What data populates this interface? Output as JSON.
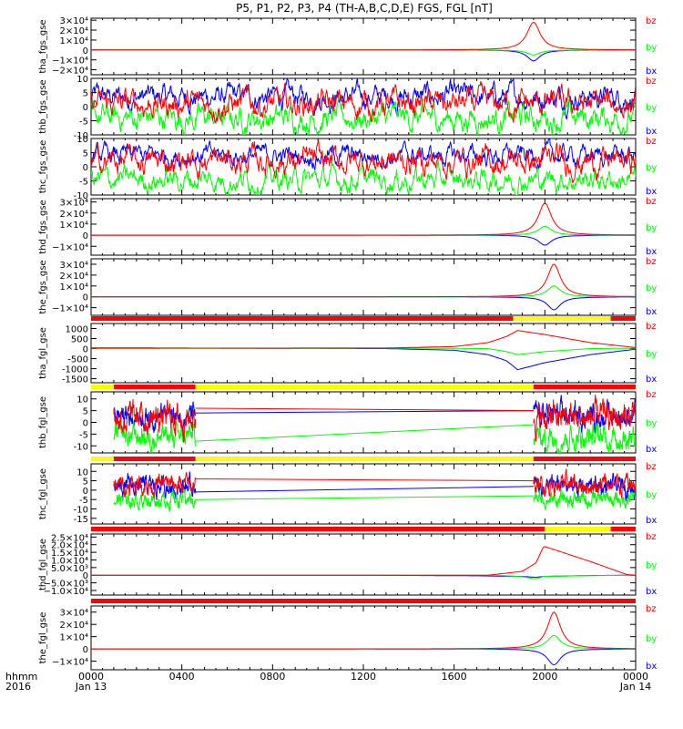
{
  "title": "P5, P1, P2, P3, P4 (TH-A,B,C,D,E) FGS, FGL [nT]",
  "x_axis": {
    "ticks": [
      "0000",
      "0400",
      "0800",
      "1200",
      "1600",
      "2000",
      "0000"
    ],
    "date_labels": [
      "Jan 13",
      "Jan 14"
    ],
    "corner_labels": [
      "hhmm",
      "2016"
    ],
    "range_hours": [
      0,
      24
    ]
  },
  "colors": {
    "bx": "#0000ff",
    "by": "#00ff00",
    "bz": "#ff0000",
    "bar_red": "#ff0000",
    "bar_yellow": "#ffff00"
  },
  "chart_data": [
    {
      "type": "line",
      "panel": "tha_fgs_gse",
      "ylabel": "tha_fgs_gse",
      "series_names": [
        "bz",
        "by",
        "bx"
      ],
      "ylim": [
        -25000,
        32000
      ],
      "ytick_values": [
        30000,
        20000,
        10000,
        0,
        -10000,
        -20000
      ],
      "ytick_labels": [
        "3×10⁴",
        "2×10⁴",
        "1×10⁴",
        "0",
        "−1×10⁴",
        "−2×10⁴"
      ],
      "data_span_hours": [
        0,
        24
      ],
      "peak": {
        "time": 19.5,
        "width": 0.35,
        "bz": 28000,
        "by": -5000,
        "bx": -11000
      },
      "baseline": {
        "bz": 0,
        "by": 0,
        "bx": 0
      }
    },
    {
      "type": "line",
      "panel": "thb_fgs_gse",
      "ylabel": "thb_fgs_gse",
      "series_names": [
        "bz",
        "by",
        "bx"
      ],
      "ylim": [
        -10,
        10
      ],
      "ytick_values": [
        10,
        5,
        0,
        -5,
        -10
      ],
      "ytick_labels": [
        "10",
        "5",
        "0",
        "-5",
        "-10"
      ],
      "data_span_hours": [
        0,
        24
      ],
      "mean": {
        "bx": 3.5,
        "by": -4,
        "bz": 1
      },
      "noise": {
        "bx": 3.5,
        "by": 4,
        "bz": 4
      }
    },
    {
      "type": "line",
      "panel": "thc_fgs_gse",
      "ylabel": "thc_fgs_gse",
      "series_names": [
        "bz",
        "by",
        "bx"
      ],
      "ylim": [
        -10,
        10
      ],
      "ytick_values": [
        10,
        5,
        0,
        -5,
        -10
      ],
      "ytick_labels": [
        "10",
        "5",
        "0",
        "-5",
        "-10"
      ],
      "data_span_hours": [
        0,
        24
      ],
      "mean": {
        "bx": 4,
        "by": -4.5,
        "bz": 2
      },
      "noise": {
        "bx": 3,
        "by": 3.5,
        "bz": 4
      }
    },
    {
      "type": "line",
      "panel": "thd_fgs_gse",
      "ylabel": "thd_fgs_gse",
      "series_names": [
        "bz",
        "by",
        "bx"
      ],
      "ylim": [
        -18000,
        33000
      ],
      "ytick_values": [
        30000,
        20000,
        10000,
        0,
        -10000
      ],
      "ytick_labels": [
        "3×10⁴",
        "2×10⁴",
        "1×10⁴",
        "0",
        "−1×10⁴"
      ],
      "data_span_hours": [
        0,
        24
      ],
      "peak": {
        "time": 20.0,
        "width": 0.35,
        "bz": 29000,
        "by": 8000,
        "bx": -9000
      },
      "baseline": {
        "bz": 0,
        "by": 0,
        "bx": 0
      }
    },
    {
      "type": "line",
      "panel": "the_fgs_gse",
      "ylabel": "the_fgs_gse",
      "series_names": [
        "bz",
        "by",
        "bx"
      ],
      "ylim": [
        -17000,
        35000
      ],
      "ytick_values": [
        30000,
        20000,
        10000,
        0,
        -10000
      ],
      "ytick_labels": [
        "3×10⁴",
        "2×10⁴",
        "1×10⁴",
        "0",
        "−1×10⁴"
      ],
      "data_span_hours": [
        0,
        24
      ],
      "peak": {
        "time": 20.4,
        "width": 0.35,
        "bz": 30000,
        "by": 10000,
        "bx": -12000
      },
      "baseline": {
        "bz": 0,
        "by": 0,
        "bx": 0
      }
    },
    {
      "type": "line",
      "panel": "tha_fgl_gse",
      "ylabel": "tha_fgl_gse",
      "series_names": [
        "bz",
        "by",
        "bx"
      ],
      "ylim": [
        -1700,
        1250
      ],
      "ytick_values": [
        1000,
        500,
        0,
        -500,
        -1000,
        -1500
      ],
      "ytick_labels": [
        "1000",
        "500",
        "0",
        "-500",
        "-1000",
        "-1500"
      ],
      "data_span_hours": [
        0,
        24
      ],
      "mode_bar": [
        {
          "from": 0,
          "to": 18.6,
          "color": "red"
        },
        {
          "from": 18.6,
          "to": 22.9,
          "color": "yellow"
        },
        {
          "from": 22.9,
          "to": 24,
          "color": "red"
        }
      ],
      "curve": {
        "bz": [
          [
            0,
            20
          ],
          [
            13,
            30
          ],
          [
            16,
            100
          ],
          [
            17.5,
            300
          ],
          [
            18.3,
            600
          ],
          [
            18.8,
            900
          ],
          [
            20,
            700
          ],
          [
            22,
            300
          ],
          [
            24,
            50
          ]
        ],
        "by": [
          [
            0,
            10
          ],
          [
            15,
            20
          ],
          [
            17.5,
            0
          ],
          [
            18.3,
            -150
          ],
          [
            18.8,
            -300
          ],
          [
            20,
            -150
          ],
          [
            22,
            0
          ],
          [
            24,
            20
          ]
        ],
        "bx": [
          [
            0,
            40
          ],
          [
            13,
            0
          ],
          [
            16,
            -80
          ],
          [
            17.5,
            -300
          ],
          [
            18.3,
            -600
          ],
          [
            18.8,
            -1050
          ],
          [
            20,
            -700
          ],
          [
            22,
            -300
          ],
          [
            24,
            -30
          ]
        ]
      }
    },
    {
      "type": "line",
      "panel": "thb_fgl_gse",
      "ylabel": "thb_fgl_gse",
      "series_names": [
        "bz",
        "by",
        "bx"
      ],
      "ylim": [
        -13,
        13
      ],
      "ytick_values": [
        10,
        5,
        0,
        -5,
        -10
      ],
      "ytick_labels": [
        "10",
        "5",
        "0",
        "-5",
        "-10"
      ],
      "data_span_hours": [
        1,
        24
      ],
      "mode_bar": [
        {
          "from": 0,
          "to": 1,
          "color": "yellow"
        },
        {
          "from": 1,
          "to": 4.6,
          "color": "red"
        },
        {
          "from": 4.6,
          "to": 19.5,
          "color": "yellow"
        },
        {
          "from": 19.5,
          "to": 24,
          "color": "red"
        }
      ],
      "active": [
        [
          1,
          4.6
        ],
        [
          19.5,
          24
        ]
      ],
      "mean": {
        "bx": 3,
        "by": -6,
        "bz": 2
      },
      "noise": {
        "bx": 4,
        "by": 4,
        "bz": 5
      },
      "gap": {
        "bx": [
          4,
          5
        ],
        "by": [
          -8,
          -1
        ],
        "bz": [
          6,
          5
        ]
      }
    },
    {
      "type": "line",
      "panel": "thc_fgl_gse",
      "ylabel": "thc_fgl_gse",
      "series_names": [
        "bz",
        "by",
        "bx"
      ],
      "ylim": [
        -18,
        14
      ],
      "ytick_values": [
        10,
        5,
        0,
        -5,
        -10,
        -15
      ],
      "ytick_labels": [
        "10",
        "5",
        "0",
        "-5",
        "-10",
        "-15"
      ],
      "data_span_hours": [
        1,
        24
      ],
      "mode_bar": [
        {
          "from": 0,
          "to": 1,
          "color": "yellow"
        },
        {
          "from": 1,
          "to": 4.6,
          "color": "red"
        },
        {
          "from": 4.6,
          "to": 19.5,
          "color": "yellow"
        },
        {
          "from": 19.5,
          "to": 24,
          "color": "red"
        }
      ],
      "active": [
        [
          1,
          4.6
        ],
        [
          19.5,
          24
        ]
      ],
      "mean": {
        "bx": 2,
        "by": -5,
        "bz": 3
      },
      "noise": {
        "bx": 4,
        "by": 3.5,
        "bz": 4
      },
      "gap": {
        "bx": [
          -1,
          2
        ],
        "by": [
          -5,
          -3
        ],
        "bz": [
          6,
          5
        ]
      }
    },
    {
      "type": "line",
      "panel": "thd_fgl_gse",
      "ylabel": "thd_fgl_gse",
      "series_names": [
        "bz",
        "by",
        "bx"
      ],
      "ylim": [
        -13000,
        27000
      ],
      "ytick_values": [
        25000,
        20000,
        15000,
        10000,
        5000,
        0,
        -5000,
        -10000
      ],
      "ytick_labels": [
        "2.5×10⁴",
        "2.0×10⁴",
        "1.5×10⁴",
        "1.0×10⁴",
        "5.0×10³",
        "0",
        "−5.0×10³",
        "−1.0×10⁴"
      ],
      "data_span_hours": [
        0,
        24
      ],
      "mode_bar": [
        {
          "from": 0,
          "to": 20.0,
          "color": "red"
        },
        {
          "from": 20.0,
          "to": 22.9,
          "color": "yellow"
        },
        {
          "from": 22.9,
          "to": 24,
          "color": "red"
        }
      ],
      "curve": {
        "bz": [
          [
            0,
            0
          ],
          [
            17.5,
            0
          ],
          [
            19.0,
            2500
          ],
          [
            19.6,
            8000
          ],
          [
            19.95,
            19000
          ],
          [
            22,
            9000
          ],
          [
            23.6,
            500
          ],
          [
            24,
            0
          ]
        ],
        "by": [
          [
            0,
            0
          ],
          [
            18,
            0
          ],
          [
            19,
            -1000
          ],
          [
            19.6,
            -2500
          ],
          [
            19.95,
            -800
          ],
          [
            22,
            -300
          ],
          [
            23.6,
            -50
          ],
          [
            24,
            0
          ]
        ],
        "bx": [
          [
            0,
            0
          ],
          [
            12,
            0
          ],
          [
            17,
            -400
          ],
          [
            19,
            -800
          ],
          [
            19.6,
            -1400
          ],
          [
            19.95,
            -800
          ],
          [
            22,
            -200
          ],
          [
            24,
            0
          ]
        ]
      }
    },
    {
      "type": "line",
      "panel": "the_fgl_gse",
      "ylabel": "the_fgl_gse",
      "series_names": [
        "bz",
        "by",
        "bx"
      ],
      "ylim": [
        -17000,
        35000
      ],
      "ytick_values": [
        30000,
        20000,
        10000,
        0,
        -10000
      ],
      "ytick_labels": [
        "3×10⁴",
        "2×10⁴",
        "1×10⁴",
        "0",
        "−1×10⁴"
      ],
      "data_span_hours": [
        0,
        24
      ],
      "mode_bar": [
        {
          "from": 0,
          "to": 24,
          "color": "red"
        }
      ],
      "peak": {
        "time": 20.4,
        "width": 0.35,
        "bz": 30000,
        "by": 11000,
        "bx": -13000
      },
      "baseline": {
        "bz": 0,
        "by": 0,
        "bx": 0
      }
    }
  ]
}
